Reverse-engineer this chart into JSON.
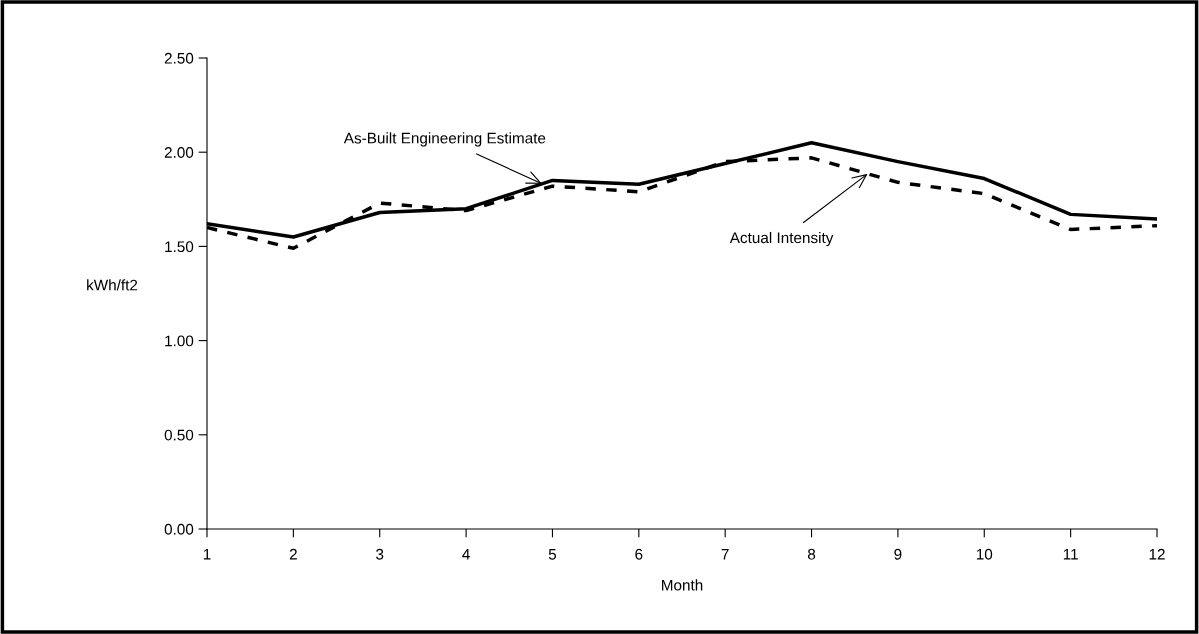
{
  "chart_data": {
    "type": "line",
    "xlabel": "Month",
    "ylabel": "kWh/ft2",
    "x": [
      1,
      2,
      3,
      4,
      5,
      6,
      7,
      8,
      9,
      10,
      11,
      12
    ],
    "series": [
      {
        "color": "#000000",
        "line_style": "solid",
        "values": [
          1.62,
          1.55,
          1.68,
          1.7,
          1.85,
          1.83,
          1.94,
          2.05,
          1.95,
          1.86,
          1.67,
          1.645
        ]
      },
      {
        "color": "#000000",
        "line_style": "dashed",
        "values": [
          1.6,
          1.49,
          1.73,
          1.69,
          1.82,
          1.79,
          1.95,
          1.97,
          1.84,
          1.78,
          1.59,
          1.61
        ]
      }
    ],
    "xlim": [
      1,
      12
    ],
    "xticks": [
      1,
      2,
      3,
      4,
      5,
      6,
      7,
      8,
      9,
      10,
      11,
      12
    ],
    "ylim": [
      0,
      2.5
    ],
    "yticks": [
      {
        "value": 0,
        "label": "0.00"
      },
      {
        "value": 0.5,
        "label": "0.50"
      },
      {
        "value": 1,
        "label": "1.00"
      },
      {
        "value": 1.5,
        "label": "1.50"
      },
      {
        "value": 2,
        "label": "2.00"
      },
      {
        "value": 2.5,
        "label": "2.50"
      }
    ],
    "grid": false,
    "marker": "none",
    "annotations": [
      {
        "text": "As-Built Engineering Estimate",
        "x": 4.88,
        "y": 1.832
      },
      {
        "text": "Actual Intensity",
        "x": 8.65,
        "y": 1.8855
      }
    ]
  }
}
